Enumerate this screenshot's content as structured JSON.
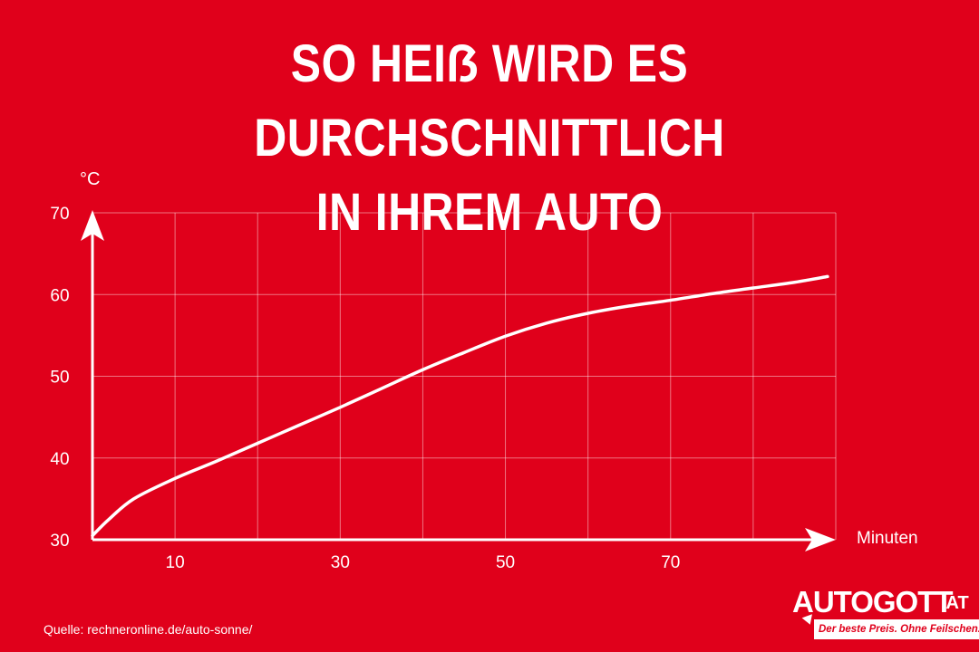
{
  "title": {
    "line1": "SO HEIẞ WIRD ES DURCHSCHNITTLICH",
    "line2": "IN IHREM AUTO"
  },
  "source": "Quelle: rechneronline.de/auto-sonne/",
  "logo": {
    "name": "AUTOGOTT",
    "suffix": ".AT",
    "tagline": "Der beste Preis. Ohne Feilschen."
  },
  "colors": {
    "background": "#e0001b",
    "foreground": "#ffffff"
  },
  "chart_data": {
    "type": "line",
    "ylabel": "°C",
    "xlabel": "Minuten",
    "xlim": [
      0,
      90
    ],
    "ylim": [
      30,
      70
    ],
    "x_ticks": [
      10,
      30,
      50,
      70
    ],
    "y_ticks": [
      30,
      40,
      50,
      60,
      70
    ],
    "grid": true,
    "series": [
      {
        "x": [
          0,
          2,
          5,
          10,
          15,
          20,
          25,
          30,
          35,
          40,
          45,
          50,
          55,
          60,
          65,
          70,
          75,
          80,
          85,
          89
        ],
        "values": [
          30.5,
          32.5,
          35,
          37.5,
          39.6,
          41.8,
          44,
          46.2,
          48.5,
          50.8,
          52.9,
          54.9,
          56.5,
          57.7,
          58.6,
          59.3,
          60.1,
          60.8,
          61.5,
          62.2
        ]
      }
    ]
  }
}
